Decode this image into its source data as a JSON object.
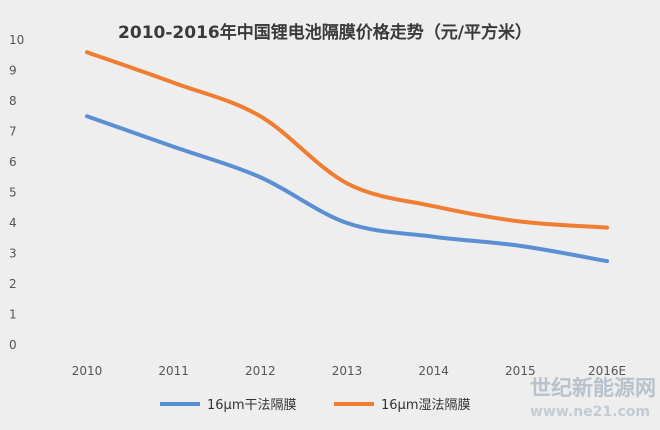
{
  "chart_data": {
    "type": "line",
    "title": "2010-2016年中国锂电池隔膜价格走势（元/平方米）",
    "categories": [
      "2010",
      "2011",
      "2012",
      "2013",
      "2014",
      "2015",
      "2016E"
    ],
    "series": [
      {
        "name": "16μm干法隔膜",
        "color": "#5b8fd4",
        "values": [
          7.5,
          6.5,
          5.5,
          4.0,
          3.55,
          3.25,
          2.75
        ]
      },
      {
        "name": "16μm湿法隔膜",
        "color": "#ef7d32",
        "values": [
          9.6,
          8.6,
          7.5,
          5.3,
          4.55,
          4.05,
          3.85
        ]
      }
    ],
    "ylim": [
      0,
      10
    ],
    "yticks": [
      "0",
      "1",
      "2",
      "3",
      "4",
      "5",
      "6",
      "7",
      "8",
      "9",
      "10"
    ],
    "grid": false,
    "legend": "bottom"
  },
  "watermark": {
    "line1": "世纪新能源网",
    "line2": "www.ne21.com"
  }
}
